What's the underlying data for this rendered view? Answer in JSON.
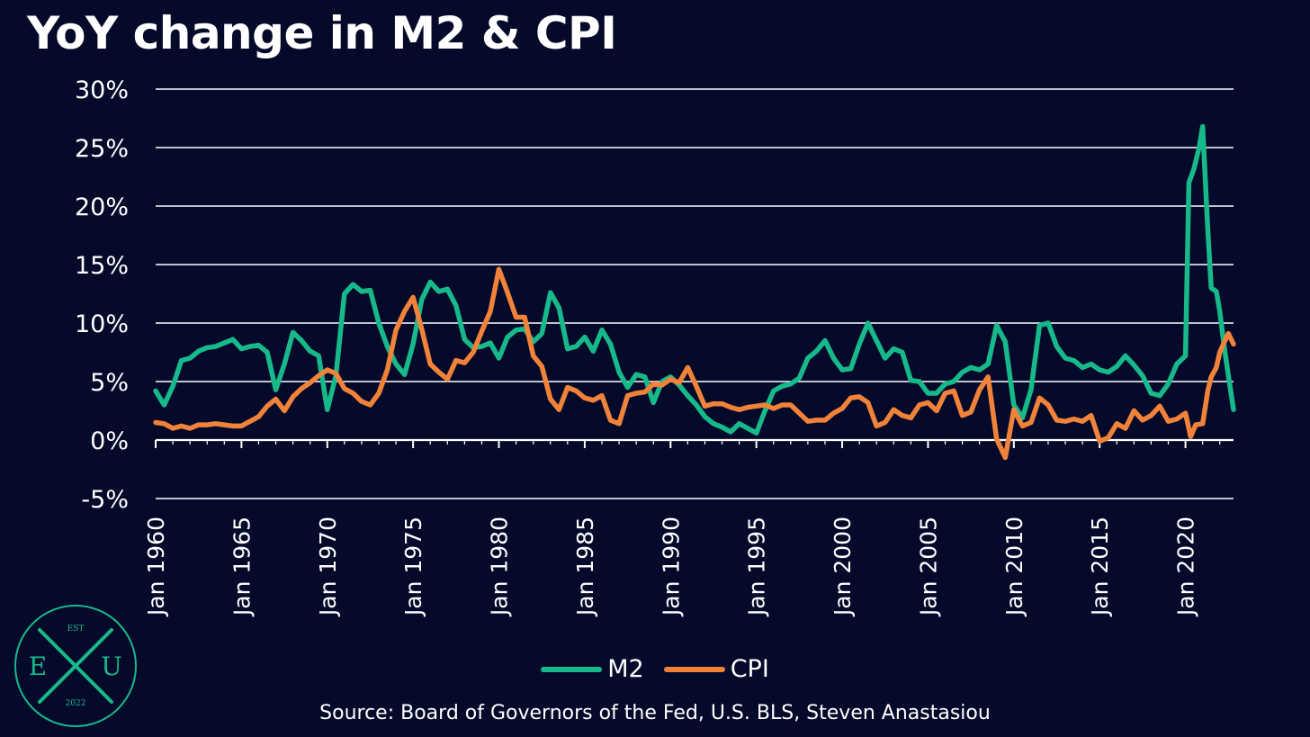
{
  "title": "YoY change in M2 & CPI",
  "source": "Source: Board of Governors of the Fed, U.S. BLS, Steven Anastasiou",
  "colors": {
    "background": "#05092a",
    "m2": "#17b98a",
    "cpi": "#f0823a",
    "grid": "#ffffff",
    "text": "#ffffff"
  },
  "logo": {
    "top": "EST",
    "left": "E",
    "right": "U",
    "bottom": "2022",
    "color": "#17b98a"
  },
  "chart_data": {
    "type": "line",
    "title": "YoY change in M2 & CPI",
    "xlabel": "",
    "ylabel": "",
    "xlim": [
      1960,
      2022.8
    ],
    "ylim": [
      -5,
      30
    ],
    "y_ticks": [
      -5,
      0,
      5,
      10,
      15,
      20,
      25,
      30
    ],
    "y_tick_labels": [
      "-5%",
      "0%",
      "5%",
      "10%",
      "15%",
      "20%",
      "25%",
      "30%"
    ],
    "x_ticks": [
      1960,
      1965,
      1970,
      1975,
      1980,
      1985,
      1990,
      1995,
      2000,
      2005,
      2010,
      2015,
      2020
    ],
    "x_tick_labels": [
      "Jan 1960",
      "Jan 1965",
      "Jan 1970",
      "Jan 1975",
      "Jan 1980",
      "Jan 1985",
      "Jan 1990",
      "Jan 1995",
      "Jan 2000",
      "Jan 2005",
      "Jan 2010",
      "Jan 2015",
      "Jan 2020"
    ],
    "grid": true,
    "legend_position": "bottom-center",
    "series": [
      {
        "name": "M2",
        "color": "#17b98a",
        "points": [
          [
            1960,
            4.2
          ],
          [
            1960.5,
            3.0
          ],
          [
            1961,
            4.6
          ],
          [
            1961.5,
            6.8
          ],
          [
            1962,
            7.0
          ],
          [
            1962.5,
            7.6
          ],
          [
            1963,
            7.9
          ],
          [
            1963.5,
            8.0
          ],
          [
            1964,
            8.3
          ],
          [
            1964.5,
            8.6
          ],
          [
            1965,
            7.8
          ],
          [
            1965.5,
            8.0
          ],
          [
            1966,
            8.1
          ],
          [
            1966.5,
            7.5
          ],
          [
            1967,
            4.3
          ],
          [
            1967.5,
            6.5
          ],
          [
            1968,
            9.2
          ],
          [
            1968.5,
            8.5
          ],
          [
            1969,
            7.6
          ],
          [
            1969.5,
            7.2
          ],
          [
            1970,
            2.6
          ],
          [
            1970.5,
            5.5
          ],
          [
            1971,
            12.5
          ],
          [
            1971.5,
            13.3
          ],
          [
            1972,
            12.7
          ],
          [
            1972.5,
            12.8
          ],
          [
            1973,
            10.0
          ],
          [
            1973.5,
            8.0
          ],
          [
            1974,
            6.5
          ],
          [
            1974.5,
            5.6
          ],
          [
            1975,
            8.2
          ],
          [
            1975.5,
            12.0
          ],
          [
            1976,
            13.5
          ],
          [
            1976.5,
            12.7
          ],
          [
            1977,
            12.9
          ],
          [
            1977.5,
            11.5
          ],
          [
            1978,
            8.6
          ],
          [
            1978.5,
            7.9
          ],
          [
            1979,
            8.0
          ],
          [
            1979.5,
            8.3
          ],
          [
            1980,
            7.0
          ],
          [
            1980.5,
            8.8
          ],
          [
            1981,
            9.4
          ],
          [
            1981.5,
            9.5
          ],
          [
            1982,
            8.4
          ],
          [
            1982.5,
            9.1
          ],
          [
            1983,
            12.6
          ],
          [
            1983.5,
            11.3
          ],
          [
            1984,
            7.8
          ],
          [
            1984.5,
            8.0
          ],
          [
            1985,
            8.8
          ],
          [
            1985.5,
            7.6
          ],
          [
            1986,
            9.4
          ],
          [
            1986.5,
            8.2
          ],
          [
            1987,
            5.8
          ],
          [
            1987.5,
            4.5
          ],
          [
            1988,
            5.6
          ],
          [
            1988.5,
            5.4
          ],
          [
            1989,
            3.2
          ],
          [
            1989.5,
            5.0
          ],
          [
            1990,
            5.4
          ],
          [
            1990.5,
            4.7
          ],
          [
            1991,
            3.8
          ],
          [
            1991.5,
            3.0
          ],
          [
            1992,
            2.0
          ],
          [
            1992.5,
            1.4
          ],
          [
            1993,
            1.1
          ],
          [
            1993.5,
            0.7
          ],
          [
            1994,
            1.4
          ],
          [
            1994.5,
            1.0
          ],
          [
            1995,
            0.6
          ],
          [
            1995.5,
            2.5
          ],
          [
            1996,
            4.2
          ],
          [
            1996.5,
            4.6
          ],
          [
            1997,
            4.8
          ],
          [
            1997.5,
            5.3
          ],
          [
            1998,
            7.0
          ],
          [
            1998.5,
            7.6
          ],
          [
            1999,
            8.5
          ],
          [
            1999.5,
            7.0
          ],
          [
            2000,
            6.0
          ],
          [
            2000.5,
            6.1
          ],
          [
            2001,
            8.2
          ],
          [
            2001.5,
            10.0
          ],
          [
            2002,
            8.5
          ],
          [
            2002.5,
            7.0
          ],
          [
            2003,
            7.8
          ],
          [
            2003.5,
            7.5
          ],
          [
            2004,
            5.1
          ],
          [
            2004.5,
            5.0
          ],
          [
            2005,
            4.0
          ],
          [
            2005.5,
            4.0
          ],
          [
            2006,
            4.8
          ],
          [
            2006.5,
            5.0
          ],
          [
            2007,
            5.8
          ],
          [
            2007.5,
            6.2
          ],
          [
            2008,
            6.0
          ],
          [
            2008.5,
            6.5
          ],
          [
            2009,
            9.8
          ],
          [
            2009.5,
            8.4
          ],
          [
            2010,
            3.0
          ],
          [
            2010.5,
            1.9
          ],
          [
            2011,
            4.3
          ],
          [
            2011.5,
            9.8
          ],
          [
            2012,
            10.0
          ],
          [
            2012.5,
            8.0
          ],
          [
            2013,
            7.0
          ],
          [
            2013.5,
            6.8
          ],
          [
            2014,
            6.2
          ],
          [
            2014.5,
            6.5
          ],
          [
            2015,
            6.0
          ],
          [
            2015.5,
            5.8
          ],
          [
            2016,
            6.3
          ],
          [
            2016.5,
            7.2
          ],
          [
            2017,
            6.4
          ],
          [
            2017.5,
            5.5
          ],
          [
            2018,
            4.0
          ],
          [
            2018.5,
            3.8
          ],
          [
            2019,
            4.8
          ],
          [
            2019.5,
            6.5
          ],
          [
            2020,
            7.2
          ],
          [
            2020.2,
            22.0
          ],
          [
            2020.5,
            23.2
          ],
          [
            2020.8,
            25.0
          ],
          [
            2021,
            26.8
          ],
          [
            2021.3,
            18.0
          ],
          [
            2021.5,
            13.0
          ],
          [
            2021.8,
            12.7
          ],
          [
            2022,
            11.0
          ],
          [
            2022.3,
            7.5
          ],
          [
            2022.5,
            5.5
          ],
          [
            2022.8,
            2.6
          ]
        ]
      },
      {
        "name": "CPI",
        "color": "#f0823a",
        "points": [
          [
            1960,
            1.5
          ],
          [
            1960.5,
            1.4
          ],
          [
            1961,
            1.0
          ],
          [
            1961.5,
            1.2
          ],
          [
            1962,
            1.0
          ],
          [
            1962.5,
            1.3
          ],
          [
            1963,
            1.3
          ],
          [
            1963.5,
            1.4
          ],
          [
            1964,
            1.3
          ],
          [
            1964.5,
            1.2
          ],
          [
            1965,
            1.2
          ],
          [
            1965.5,
            1.6
          ],
          [
            1966,
            2.0
          ],
          [
            1966.5,
            2.9
          ],
          [
            1967,
            3.5
          ],
          [
            1967.5,
            2.5
          ],
          [
            1968,
            3.7
          ],
          [
            1968.5,
            4.4
          ],
          [
            1969,
            4.9
          ],
          [
            1969.5,
            5.5
          ],
          [
            1970,
            6.0
          ],
          [
            1970.5,
            5.7
          ],
          [
            1971,
            4.4
          ],
          [
            1971.5,
            4.0
          ],
          [
            1972,
            3.3
          ],
          [
            1972.5,
            3.0
          ],
          [
            1973,
            4.0
          ],
          [
            1973.5,
            6.0
          ],
          [
            1974,
            9.4
          ],
          [
            1974.5,
            11.0
          ],
          [
            1975,
            12.2
          ],
          [
            1975.5,
            9.5
          ],
          [
            1976,
            6.5
          ],
          [
            1976.5,
            5.8
          ],
          [
            1977,
            5.2
          ],
          [
            1977.5,
            6.8
          ],
          [
            1978,
            6.6
          ],
          [
            1978.5,
            7.5
          ],
          [
            1979,
            9.3
          ],
          [
            1979.5,
            11.0
          ],
          [
            1980,
            14.6
          ],
          [
            1980.5,
            12.6
          ],
          [
            1981,
            10.5
          ],
          [
            1981.5,
            10.5
          ],
          [
            1982,
            7.2
          ],
          [
            1982.5,
            6.3
          ],
          [
            1983,
            3.5
          ],
          [
            1983.5,
            2.6
          ],
          [
            1984,
            4.5
          ],
          [
            1984.5,
            4.2
          ],
          [
            1985,
            3.6
          ],
          [
            1985.5,
            3.4
          ],
          [
            1986,
            3.8
          ],
          [
            1986.5,
            1.7
          ],
          [
            1987,
            1.4
          ],
          [
            1987.5,
            3.8
          ],
          [
            1988,
            4.0
          ],
          [
            1988.5,
            4.1
          ],
          [
            1989,
            4.8
          ],
          [
            1989.5,
            4.7
          ],
          [
            1990,
            5.2
          ],
          [
            1990.5,
            4.9
          ],
          [
            1991,
            6.2
          ],
          [
            1991.5,
            4.6
          ],
          [
            1992,
            2.9
          ],
          [
            1992.5,
            3.1
          ],
          [
            1993,
            3.1
          ],
          [
            1993.5,
            2.8
          ],
          [
            1994,
            2.6
          ],
          [
            1994.5,
            2.8
          ],
          [
            1995,
            2.9
          ],
          [
            1995.5,
            3.0
          ],
          [
            1996,
            2.7
          ],
          [
            1996.5,
            3.0
          ],
          [
            1997,
            3.0
          ],
          [
            1997.5,
            2.3
          ],
          [
            1998,
            1.6
          ],
          [
            1998.5,
            1.7
          ],
          [
            1999,
            1.7
          ],
          [
            1999.5,
            2.3
          ],
          [
            2000,
            2.7
          ],
          [
            2000.5,
            3.6
          ],
          [
            2001,
            3.7
          ],
          [
            2001.5,
            3.2
          ],
          [
            2002,
            1.2
          ],
          [
            2002.5,
            1.5
          ],
          [
            2003,
            2.6
          ],
          [
            2003.5,
            2.1
          ],
          [
            2004,
            1.9
          ],
          [
            2004.5,
            3.0
          ],
          [
            2005,
            3.2
          ],
          [
            2005.5,
            2.5
          ],
          [
            2006,
            4.0
          ],
          [
            2006.5,
            4.2
          ],
          [
            2007,
            2.1
          ],
          [
            2007.5,
            2.4
          ],
          [
            2008,
            4.3
          ],
          [
            2008.5,
            5.4
          ],
          [
            2009,
            0.1
          ],
          [
            2009.5,
            -1.5
          ],
          [
            2010,
            2.6
          ],
          [
            2010.5,
            1.2
          ],
          [
            2011,
            1.5
          ],
          [
            2011.5,
            3.6
          ],
          [
            2012,
            3.0
          ],
          [
            2012.5,
            1.7
          ],
          [
            2013,
            1.6
          ],
          [
            2013.5,
            1.8
          ],
          [
            2014,
            1.6
          ],
          [
            2014.5,
            2.1
          ],
          [
            2015,
            -0.1
          ],
          [
            2015.5,
            0.2
          ],
          [
            2016,
            1.4
          ],
          [
            2016.5,
            1.0
          ],
          [
            2017,
            2.5
          ],
          [
            2017.5,
            1.7
          ],
          [
            2018,
            2.1
          ],
          [
            2018.5,
            2.9
          ],
          [
            2019,
            1.6
          ],
          [
            2019.5,
            1.8
          ],
          [
            2020,
            2.3
          ],
          [
            2020.3,
            0.3
          ],
          [
            2020.6,
            1.3
          ],
          [
            2021,
            1.4
          ],
          [
            2021.3,
            4.2
          ],
          [
            2021.5,
            5.4
          ],
          [
            2021.8,
            6.2
          ],
          [
            2022,
            7.5
          ],
          [
            2022.3,
            8.5
          ],
          [
            2022.5,
            9.1
          ],
          [
            2022.8,
            8.2
          ]
        ]
      }
    ]
  }
}
